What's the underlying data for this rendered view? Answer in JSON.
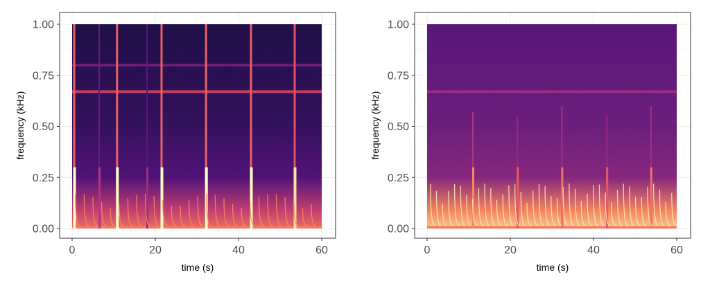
{
  "chart_data": [
    {
      "type": "heatmap",
      "title": "",
      "xlabel": "time (s)",
      "ylabel": "frequency (kHz)",
      "xlim": [
        0,
        60
      ],
      "ylim": [
        0,
        1
      ],
      "x_ticks": [
        0,
        20,
        40,
        60
      ],
      "x_tick_labels": [
        "0",
        "20",
        "40",
        "60"
      ],
      "y_ticks": [
        0,
        0.25,
        0.5,
        0.75,
        1
      ],
      "y_tick_labels": [
        "0.00",
        "0.25",
        "0.50",
        "0.75",
        "1.00"
      ],
      "grid": true,
      "legend": "none",
      "colormap": "magma",
      "background_intensity": 0.14,
      "tonal_lines": [
        {
          "frequency_khz": 0.67,
          "intensity": 0.6
        },
        {
          "frequency_khz": 0.8,
          "intensity": 0.35
        }
      ],
      "broadband_events": [
        {
          "time_s": 0.5,
          "intensity": 0.95,
          "fmax_khz": 1.0
        },
        {
          "time_s": 10.8,
          "intensity": 0.95,
          "fmax_khz": 1.0
        },
        {
          "time_s": 21.5,
          "intensity": 0.95,
          "fmax_khz": 1.0
        },
        {
          "time_s": 32.2,
          "intensity": 0.95,
          "fmax_khz": 1.0
        },
        {
          "time_s": 43.0,
          "intensity": 0.95,
          "fmax_khz": 1.0
        },
        {
          "time_s": 53.5,
          "intensity": 0.9,
          "fmax_khz": 1.0
        },
        {
          "time_s": 6.5,
          "intensity": 0.45,
          "fmax_khz": 1.0
        },
        {
          "time_s": 18.0,
          "intensity": 0.4,
          "fmax_khz": 1.0
        }
      ],
      "low_freq_band": {
        "fmax_khz": 0.25,
        "intensity": 0.55
      }
    },
    {
      "type": "heatmap",
      "title": "",
      "xlabel": "time (s)",
      "ylabel": "frequency (kHz)",
      "xlim": [
        0,
        60
      ],
      "ylim": [
        0,
        1
      ],
      "x_ticks": [
        0,
        20,
        40,
        60
      ],
      "x_tick_labels": [
        "0",
        "20",
        "40",
        "60"
      ],
      "y_ticks": [
        0,
        0.25,
        0.5,
        0.75,
        1
      ],
      "y_tick_labels": [
        "0.00",
        "0.25",
        "0.50",
        "0.75",
        "1.00"
      ],
      "grid": true,
      "legend": "none",
      "colormap": "magma",
      "background_intensity": 0.28,
      "tonal_lines": [
        {
          "frequency_khz": 0.67,
          "intensity": 0.45
        }
      ],
      "broadband_events": [
        {
          "time_s": 11.0,
          "intensity": 0.7,
          "fmax_khz": 0.57
        },
        {
          "time_s": 21.7,
          "intensity": 0.6,
          "fmax_khz": 0.55
        },
        {
          "time_s": 32.4,
          "intensity": 0.65,
          "fmax_khz": 0.6
        },
        {
          "time_s": 43.2,
          "intensity": 0.6,
          "fmax_khz": 0.55
        },
        {
          "time_s": 53.8,
          "intensity": 0.65,
          "fmax_khz": 0.6
        }
      ],
      "low_freq_band": {
        "fmax_khz": 0.25,
        "intensity": 0.75
      }
    }
  ]
}
